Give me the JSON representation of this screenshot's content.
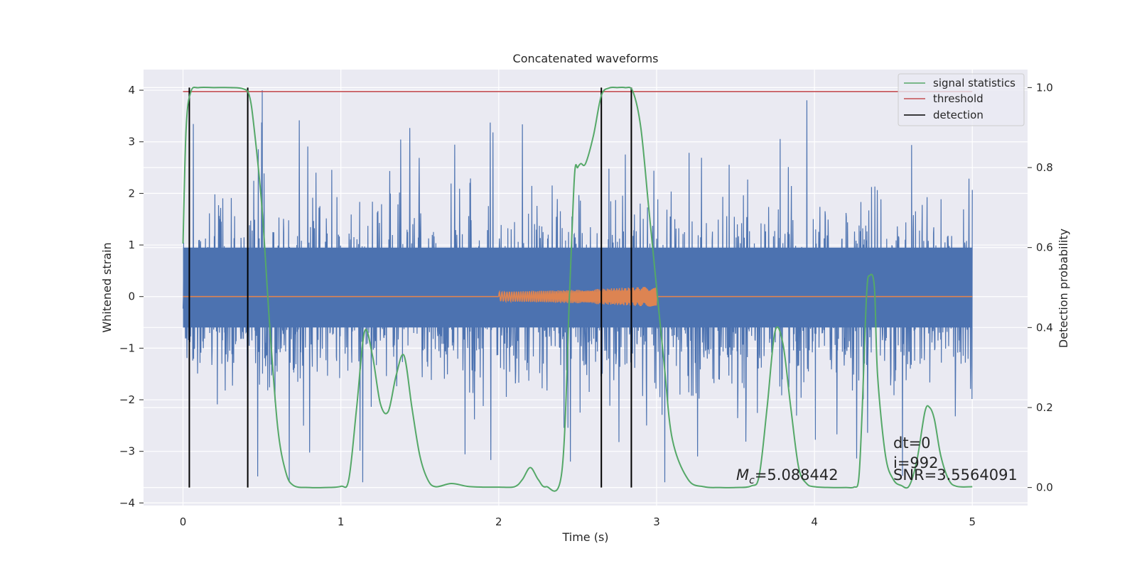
{
  "chart_data": {
    "type": "line",
    "title": "Concatenated waveforms",
    "xlabel": "Time (s)",
    "ylabel": "Whitened strain",
    "y2label": "Detection probability",
    "xlim": [
      -0.25,
      5.35
    ],
    "ylim": [
      -4.05,
      4.4
    ],
    "y2lim": [
      -0.045,
      1.045
    ],
    "x_ticks": [
      0,
      1,
      2,
      3,
      4,
      5
    ],
    "y_ticks": [
      -4,
      -3,
      -2,
      -1,
      0,
      1,
      2,
      3,
      4
    ],
    "y2_ticks": [
      0.0,
      0.2,
      0.4,
      0.6,
      0.8,
      1.0
    ],
    "y2_tick_labels": [
      "0.0",
      "0.2",
      "0.4",
      "0.6",
      "0.8",
      "1.0"
    ],
    "grid": true,
    "legend_position": "top-right",
    "colors": {
      "strain": "#4c72b0",
      "injection": "#dd8452",
      "signal_statistics": "#55a868",
      "threshold": "#c44e52",
      "detection": "#000000",
      "plot_background": "#eaeaf2",
      "grid": "#ffffff"
    },
    "series": [
      {
        "name": "strain",
        "axis": "left",
        "x_range": [
          0,
          5
        ],
        "typical_band": [
          -0.6,
          0.95
        ],
        "spike_envelope": [
          -3.6,
          4.0
        ]
      },
      {
        "name": "injection",
        "axis": "left",
        "x": [
          0,
          2.0,
          2.0,
          2.5,
          3.0,
          3.0,
          5
        ],
        "amplitude": [
          0,
          0,
          0.09,
          0.13,
          0.2,
          0,
          0
        ]
      },
      {
        "name": "signal statistics",
        "axis": "right",
        "x": [
          0,
          0.02,
          0.05,
          0.1,
          0.2,
          0.3,
          0.38,
          0.42,
          0.45,
          0.5,
          0.55,
          0.6,
          0.65,
          0.7,
          0.8,
          0.9,
          1.0,
          1.05,
          1.1,
          1.15,
          1.2,
          1.25,
          1.3,
          1.35,
          1.4,
          1.45,
          1.5,
          1.55,
          1.6,
          1.7,
          1.8,
          1.9,
          2.0,
          2.1,
          2.15,
          2.2,
          2.25,
          2.3,
          2.4,
          2.45,
          2.48,
          2.5,
          2.52,
          2.55,
          2.6,
          2.65,
          2.7,
          2.75,
          2.8,
          2.85,
          2.9,
          2.95,
          3.0,
          3.05,
          3.1,
          3.2,
          3.3,
          3.4,
          3.5,
          3.6,
          3.65,
          3.7,
          3.75,
          3.8,
          3.85,
          3.9,
          3.95,
          4.0,
          4.1,
          4.2,
          4.25,
          4.28,
          4.3,
          4.33,
          4.35,
          4.38,
          4.4,
          4.45,
          4.5,
          4.55,
          4.6,
          4.65,
          4.7,
          4.73,
          4.76,
          4.8,
          4.85,
          4.9,
          5.0
        ],
        "values": [
          0.61,
          0.9,
          0.99,
          1.0,
          1.0,
          1.0,
          0.997,
          0.98,
          0.9,
          0.7,
          0.4,
          0.15,
          0.04,
          0.005,
          0.0,
          0.0,
          0.003,
          0.02,
          0.2,
          0.39,
          0.33,
          0.21,
          0.19,
          0.28,
          0.33,
          0.2,
          0.08,
          0.02,
          0.002,
          0.01,
          0.003,
          0.001,
          0.001,
          0.002,
          0.02,
          0.05,
          0.02,
          0.002,
          0.04,
          0.5,
          0.78,
          0.8,
          0.81,
          0.81,
          0.88,
          0.98,
          0.999,
          1.0,
          1.0,
          0.99,
          0.9,
          0.7,
          0.5,
          0.3,
          0.12,
          0.02,
          0.002,
          0.0,
          0.0,
          0.004,
          0.03,
          0.2,
          0.39,
          0.36,
          0.2,
          0.05,
          0.01,
          0.002,
          0.0,
          0.0,
          0.001,
          0.02,
          0.17,
          0.48,
          0.53,
          0.5,
          0.28,
          0.08,
          0.02,
          0.005,
          0.004,
          0.07,
          0.19,
          0.2,
          0.17,
          0.08,
          0.02,
          0.003,
          0.002
        ]
      },
      {
        "name": "threshold",
        "axis": "right",
        "x": [
          0,
          5
        ],
        "values": [
          0.99,
          0.99
        ]
      },
      {
        "name": "detection",
        "axis": "right",
        "x": [
          0.04,
          0.41,
          2.65,
          2.84
        ],
        "y_range": [
          0,
          1
        ]
      }
    ],
    "legend_entries": [
      "signal statistics",
      "threshold",
      "detection"
    ],
    "annotations": {
      "mc_symbol": "M",
      "mc_subscript": "c",
      "mc_value": "=5.088442",
      "dt": "dt=0",
      "i": "i=992",
      "snr": "SNR=3.5564091"
    }
  }
}
